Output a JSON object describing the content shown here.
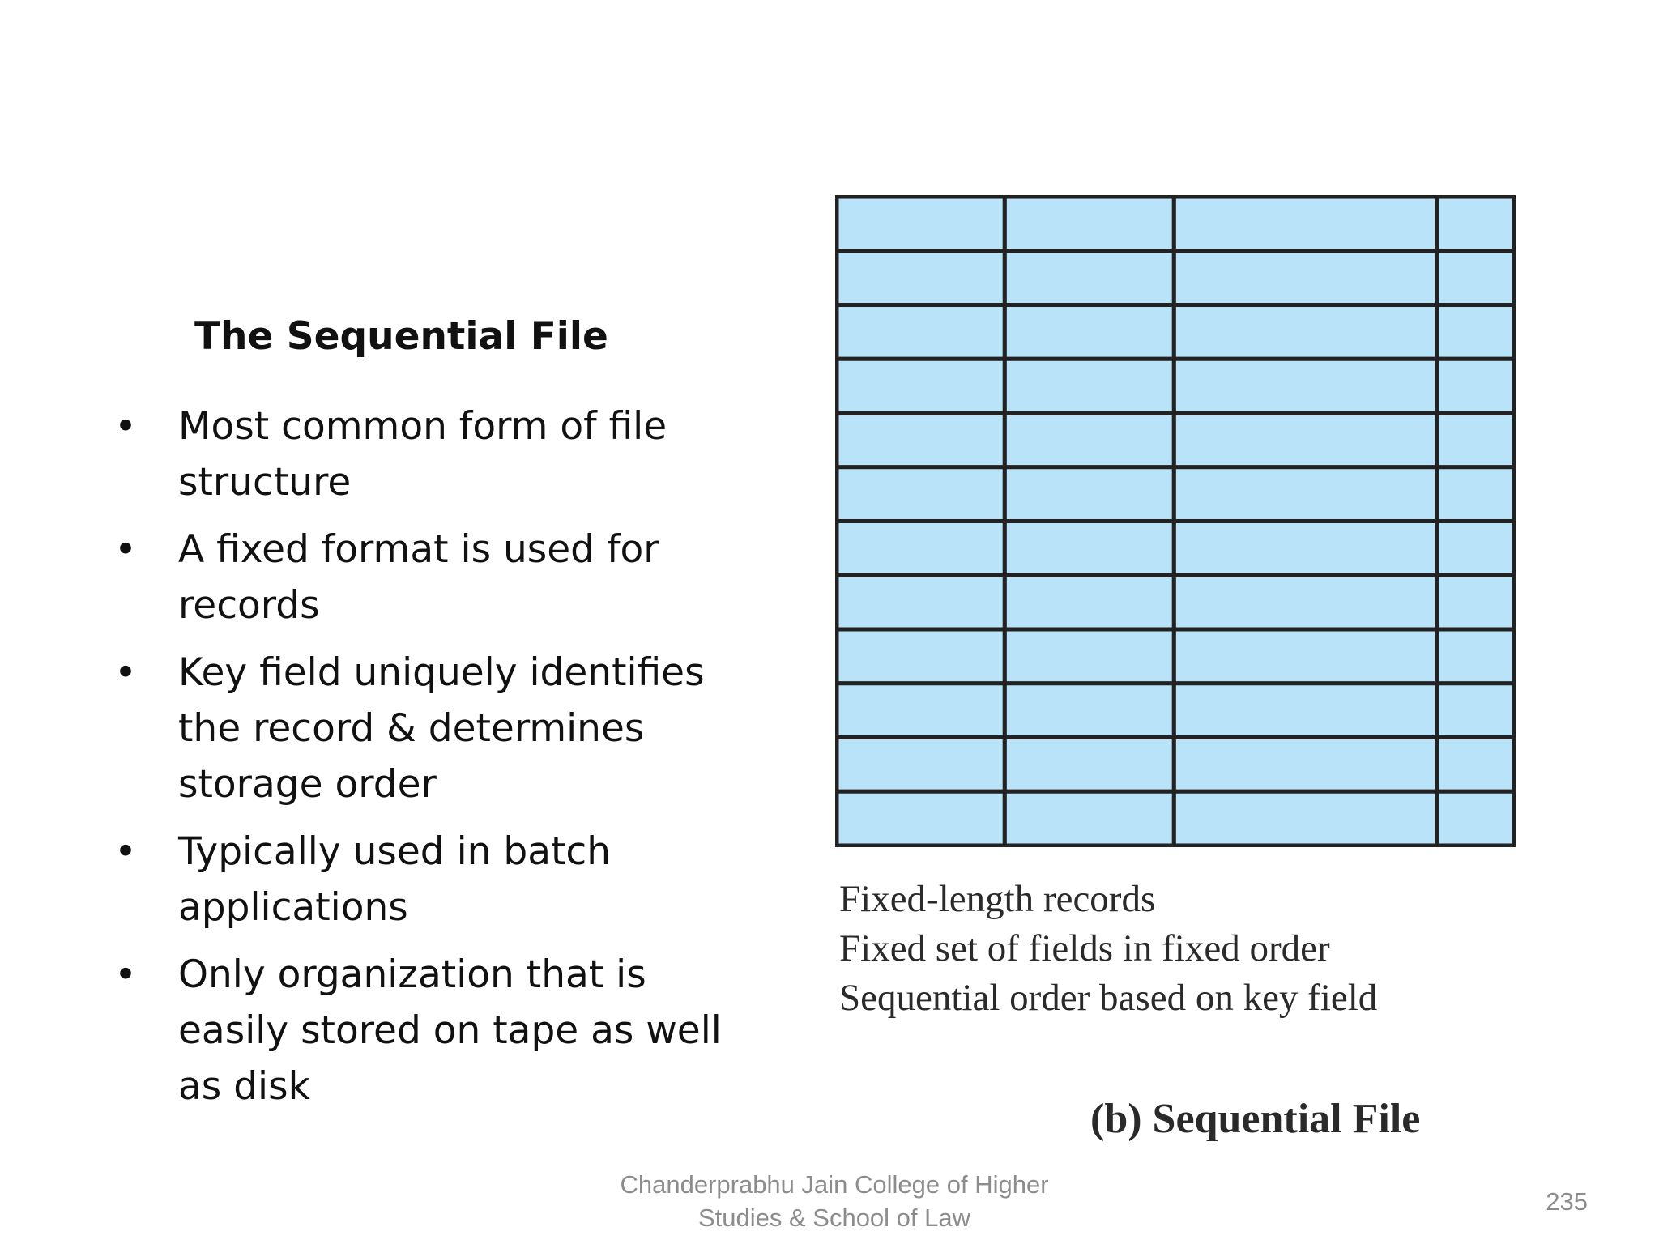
{
  "slide": {
    "title": "The Sequential File",
    "bullets": [
      {
        "marker": "•",
        "lines": [
          "Most common form of file",
          "structure"
        ]
      },
      {
        "marker": "•",
        "lines": [
          "A fixed format is used for",
          "records"
        ]
      },
      {
        "marker": "•",
        "lines": [
          "Key field uniquely identifies",
          "the record & determines",
          "storage order"
        ]
      },
      {
        "marker": "•",
        "lines": [
          "Typically used in batch",
          "applications"
        ]
      },
      {
        "marker": "•",
        "lines": [
          "Only organization that is",
          "easily stored on tape as well",
          "as disk"
        ]
      }
    ]
  },
  "figure": {
    "record_count": 12,
    "field_count": 4,
    "cell_color": "#b9e3f8",
    "grid_color": "#222222",
    "notes": [
      "Fixed-length records",
      "Fixed set of fields in fixed order",
      "Sequential order based on key field"
    ],
    "caption": "(b) Sequential File"
  },
  "footer": {
    "school_line1": "Chanderprabhu Jain College of Higher",
    "school_line2": "Studies & School of Law",
    "page_number": "235"
  }
}
